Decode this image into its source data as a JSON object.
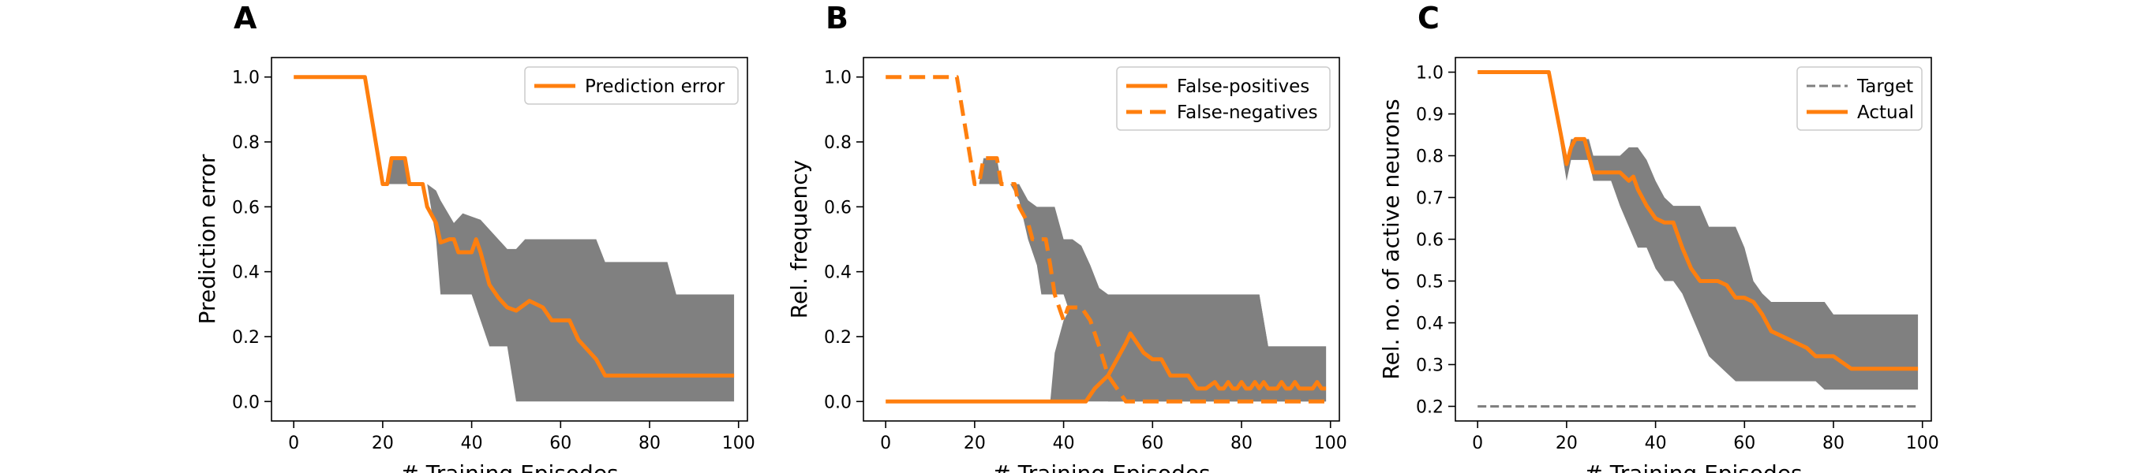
{
  "chart_data": [
    {
      "type": "line",
      "panel_label": "A",
      "xlabel": "# Training Episodes",
      "ylabel": "Prediction error",
      "xlim": [
        -5,
        102
      ],
      "ylim": [
        -0.06,
        1.06
      ],
      "xticks": [
        0,
        20,
        40,
        60,
        80,
        100
      ],
      "xtick_labels": [
        "0",
        "20",
        "40",
        "60",
        "80",
        "100"
      ],
      "yticks": [
        0.0,
        0.2,
        0.4,
        0.6,
        0.8,
        1.0
      ],
      "ytick_labels": [
        "0.0",
        "0.2",
        "0.4",
        "0.6",
        "0.8",
        "1.0"
      ],
      "legend_position": "top-right",
      "grid": false,
      "bands": [
        {
          "color": "#808080",
          "x": [
            16,
            20,
            21,
            22,
            25,
            26,
            30,
            32,
            33,
            36,
            38,
            40,
            42,
            44,
            46,
            48,
            50,
            52,
            54,
            56,
            60,
            64,
            68,
            70,
            80,
            84,
            86,
            99
          ],
          "upper": [
            1.0,
            0.67,
            0.67,
            0.75,
            0.75,
            0.67,
            0.67,
            0.65,
            0.62,
            0.55,
            0.58,
            0.57,
            0.56,
            0.53,
            0.5,
            0.47,
            0.47,
            0.5,
            0.5,
            0.5,
            0.5,
            0.5,
            0.5,
            0.43,
            0.43,
            0.43,
            0.33,
            0.33
          ],
          "lower": [
            1.0,
            0.67,
            0.67,
            0.67,
            0.67,
            0.67,
            0.67,
            0.5,
            0.33,
            0.33,
            0.33,
            0.33,
            0.25,
            0.17,
            0.17,
            0.17,
            0.0,
            0.0,
            0.0,
            0.0,
            0.0,
            0.0,
            0.0,
            0.0,
            0.0,
            0.0,
            0.0,
            0.0
          ]
        }
      ],
      "series": [
        {
          "name": "Prediction error",
          "color": "#ff7f0e",
          "dash": "solid",
          "x": [
            0,
            16,
            20,
            21,
            22,
            25,
            26,
            29,
            30,
            32,
            33,
            35,
            36,
            37,
            38,
            40,
            41,
            42,
            44,
            46,
            48,
            50,
            51,
            53,
            56,
            58,
            62,
            64,
            68,
            70,
            80,
            99
          ],
          "y": [
            1.0,
            1.0,
            0.67,
            0.67,
            0.75,
            0.75,
            0.67,
            0.67,
            0.6,
            0.55,
            0.49,
            0.5,
            0.5,
            0.46,
            0.46,
            0.46,
            0.5,
            0.46,
            0.36,
            0.32,
            0.29,
            0.28,
            0.29,
            0.31,
            0.29,
            0.25,
            0.25,
            0.19,
            0.13,
            0.08,
            0.08,
            0.08
          ]
        }
      ]
    },
    {
      "type": "line",
      "panel_label": "B",
      "xlabel": "# Training Episodes",
      "ylabel": "Rel. frequency",
      "xlim": [
        -5,
        102
      ],
      "ylim": [
        -0.06,
        1.06
      ],
      "xticks": [
        0,
        20,
        40,
        60,
        80,
        100
      ],
      "xtick_labels": [
        "0",
        "20",
        "40",
        "60",
        "80",
        "100"
      ],
      "yticks": [
        0.0,
        0.2,
        0.4,
        0.6,
        0.8,
        1.0
      ],
      "ytick_labels": [
        "0.0",
        "0.2",
        "0.4",
        "0.6",
        "0.8",
        "1.0"
      ],
      "legend_position": "top-right",
      "grid": false,
      "bands": [
        {
          "color": "#808080",
          "x": [
            16,
            20,
            21,
            22,
            25,
            26,
            28,
            30,
            32,
            34,
            35,
            36,
            37,
            38,
            40,
            42,
            44,
            46,
            48,
            50,
            51,
            54,
            56,
            60,
            68,
            70,
            84,
            86,
            90,
            99
          ],
          "upper": [
            1.0,
            0.67,
            0.67,
            0.75,
            0.75,
            0.67,
            0.67,
            0.67,
            0.62,
            0.6,
            0.6,
            0.6,
            0.6,
            0.6,
            0.5,
            0.5,
            0.48,
            0.42,
            0.35,
            0.33,
            0.33,
            0.33,
            0.33,
            0.33,
            0.33,
            0.33,
            0.33,
            0.17,
            0.17,
            0.17
          ],
          "lower": [
            1.0,
            0.67,
            0.67,
            0.67,
            0.67,
            0.67,
            0.67,
            0.62,
            0.5,
            0.42,
            0.33,
            0.33,
            0.33,
            0.33,
            0.33,
            0.25,
            0.17,
            0.17,
            0.17,
            0.0,
            0.0,
            0.0,
            0.0,
            0.0,
            0.0,
            0.0,
            0.0,
            0.0,
            0.0,
            0.0
          ]
        },
        {
          "color": "#808080",
          "x": [
            37,
            38,
            40,
            42,
            44,
            46,
            48,
            50,
            52,
            54,
            56,
            60,
            64,
            66,
            68,
            70,
            80,
            84,
            86,
            90,
            99
          ],
          "upper": [
            0.0,
            0.15,
            0.25,
            0.3,
            0.33,
            0.33,
            0.33,
            0.33,
            0.33,
            0.33,
            0.33,
            0.33,
            0.33,
            0.33,
            0.33,
            0.33,
            0.33,
            0.33,
            0.17,
            0.17,
            0.17
          ],
          "lower": [
            0.0,
            0.0,
            0.0,
            0.0,
            0.0,
            0.0,
            0.0,
            0.0,
            0.0,
            0.0,
            0.0,
            0.0,
            0.0,
            0.0,
            0.0,
            0.0,
            0.0,
            0.0,
            0.0,
            0.0,
            0.0
          ]
        }
      ],
      "series": [
        {
          "name": "False-positives",
          "color": "#ff7f0e",
          "dash": "solid",
          "x": [
            0,
            45,
            47,
            50,
            52,
            54,
            55,
            56,
            58,
            60,
            62,
            64,
            68,
            70,
            72,
            74,
            75,
            76,
            77,
            78,
            79,
            80,
            81,
            82,
            83,
            84,
            85,
            86,
            87,
            88,
            89,
            90,
            91,
            92,
            93,
            94,
            95,
            96,
            97,
            98,
            99
          ],
          "y": [
            0.0,
            0.0,
            0.04,
            0.08,
            0.13,
            0.18,
            0.21,
            0.19,
            0.15,
            0.13,
            0.13,
            0.08,
            0.08,
            0.04,
            0.04,
            0.06,
            0.04,
            0.04,
            0.06,
            0.04,
            0.04,
            0.06,
            0.04,
            0.04,
            0.06,
            0.04,
            0.06,
            0.04,
            0.04,
            0.04,
            0.06,
            0.04,
            0.04,
            0.06,
            0.04,
            0.04,
            0.04,
            0.04,
            0.06,
            0.04,
            0.04
          ]
        },
        {
          "name": "False-negatives",
          "color": "#ff7f0e",
          "dash": "dashed",
          "x": [
            0,
            16,
            20,
            21,
            22,
            25,
            26,
            29,
            30,
            32,
            33,
            35,
            36,
            37,
            38,
            40,
            41,
            42,
            44,
            46,
            48,
            50,
            52,
            54,
            55,
            58,
            60,
            70,
            80,
            99
          ],
          "y": [
            1.0,
            1.0,
            0.67,
            0.67,
            0.75,
            0.75,
            0.67,
            0.67,
            0.6,
            0.55,
            0.5,
            0.5,
            0.5,
            0.42,
            0.33,
            0.25,
            0.29,
            0.29,
            0.29,
            0.25,
            0.17,
            0.08,
            0.04,
            0.0,
            0.0,
            0.0,
            0.0,
            0.0,
            0.0,
            0.0
          ]
        }
      ]
    },
    {
      "type": "line",
      "panel_label": "C",
      "xlabel": "# Training Episodes",
      "ylabel": "Rel. no. of active neurons",
      "xlim": [
        -5,
        102
      ],
      "ylim": [
        0.165,
        1.035
      ],
      "xticks": [
        0,
        20,
        40,
        60,
        80,
        100
      ],
      "xtick_labels": [
        "0",
        "20",
        "40",
        "60",
        "80",
        "100"
      ],
      "yticks": [
        0.2,
        0.3,
        0.4,
        0.5,
        0.6,
        0.7,
        0.8,
        0.9,
        1.0
      ],
      "ytick_labels": [
        "0.2",
        "0.3",
        "0.4",
        "0.5",
        "0.6",
        "0.7",
        "0.8",
        "0.9",
        "1.0"
      ],
      "legend_position": "top-right",
      "grid": false,
      "bands": [
        {
          "color": "#808080",
          "x": [
            16,
            20,
            21,
            22,
            24,
            25,
            26,
            28,
            30,
            32,
            34,
            36,
            38,
            40,
            42,
            44,
            46,
            48,
            50,
            52,
            54,
            56,
            58,
            60,
            62,
            64,
            66,
            68,
            70,
            72,
            74,
            76,
            78,
            80,
            84,
            90,
            99
          ],
          "upper": [
            1.0,
            0.79,
            0.84,
            0.84,
            0.84,
            0.84,
            0.8,
            0.8,
            0.8,
            0.8,
            0.82,
            0.82,
            0.79,
            0.74,
            0.7,
            0.68,
            0.68,
            0.68,
            0.68,
            0.63,
            0.63,
            0.63,
            0.63,
            0.58,
            0.5,
            0.47,
            0.45,
            0.45,
            0.45,
            0.45,
            0.45,
            0.45,
            0.45,
            0.42,
            0.42,
            0.42,
            0.42
          ],
          "lower": [
            1.0,
            0.74,
            0.79,
            0.79,
            0.79,
            0.79,
            0.74,
            0.74,
            0.74,
            0.68,
            0.63,
            0.58,
            0.58,
            0.53,
            0.5,
            0.5,
            0.47,
            0.42,
            0.37,
            0.32,
            0.3,
            0.28,
            0.26,
            0.26,
            0.26,
            0.26,
            0.26,
            0.26,
            0.26,
            0.26,
            0.26,
            0.26,
            0.24,
            0.24,
            0.24,
            0.24,
            0.24
          ]
        }
      ],
      "series": [
        {
          "name": "Target",
          "color": "#808080",
          "dash": "dashed",
          "x": [
            0,
            99
          ],
          "y": [
            0.2,
            0.2
          ]
        },
        {
          "name": "Actual",
          "color": "#ff7f0e",
          "dash": "solid",
          "x": [
            0,
            16,
            20,
            21,
            22,
            24,
            25,
            26,
            28,
            30,
            32,
            34,
            35,
            36,
            38,
            40,
            42,
            44,
            46,
            48,
            50,
            54,
            56,
            58,
            60,
            62,
            64,
            66,
            70,
            74,
            76,
            78,
            80,
            84,
            90,
            99
          ],
          "y": [
            1.0,
            1.0,
            0.78,
            0.82,
            0.84,
            0.84,
            0.8,
            0.76,
            0.76,
            0.76,
            0.76,
            0.74,
            0.75,
            0.72,
            0.68,
            0.65,
            0.64,
            0.64,
            0.58,
            0.53,
            0.5,
            0.5,
            0.49,
            0.46,
            0.46,
            0.45,
            0.42,
            0.38,
            0.36,
            0.34,
            0.32,
            0.32,
            0.32,
            0.29,
            0.29,
            0.29
          ]
        }
      ]
    }
  ]
}
